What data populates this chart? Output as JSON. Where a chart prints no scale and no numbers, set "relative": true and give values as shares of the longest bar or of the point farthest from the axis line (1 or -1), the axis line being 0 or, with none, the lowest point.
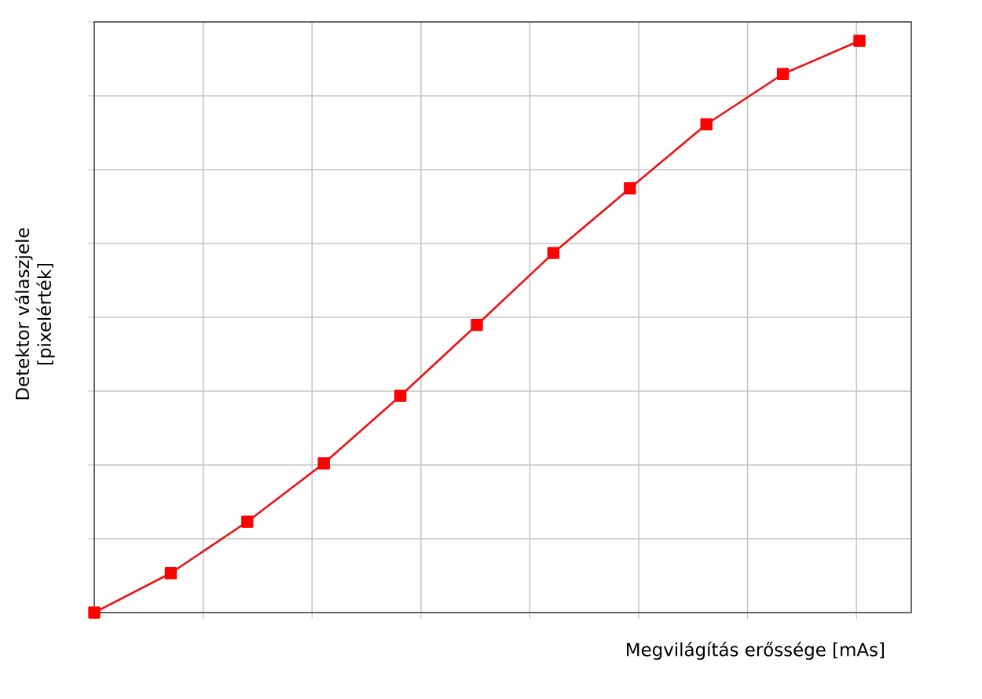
{
  "chart_data": {
    "type": "line",
    "relative": true,
    "xlabel": "Megvilágítás erőssége [mAs]",
    "ylabel": "Detektor válaszjele [pixelérték]",
    "categories": [
      null,
      null,
      null,
      null,
      null,
      null,
      null,
      null,
      null,
      null,
      null
    ],
    "values": [
      0,
      0.069,
      0.159,
      0.261,
      0.379,
      0.503,
      0.629,
      0.742,
      0.854,
      0.942,
      1
    ],
    "color": "#ee1111",
    "marker": "square",
    "line_style": "solid",
    "grid": true,
    "tick_labels": false
  }
}
